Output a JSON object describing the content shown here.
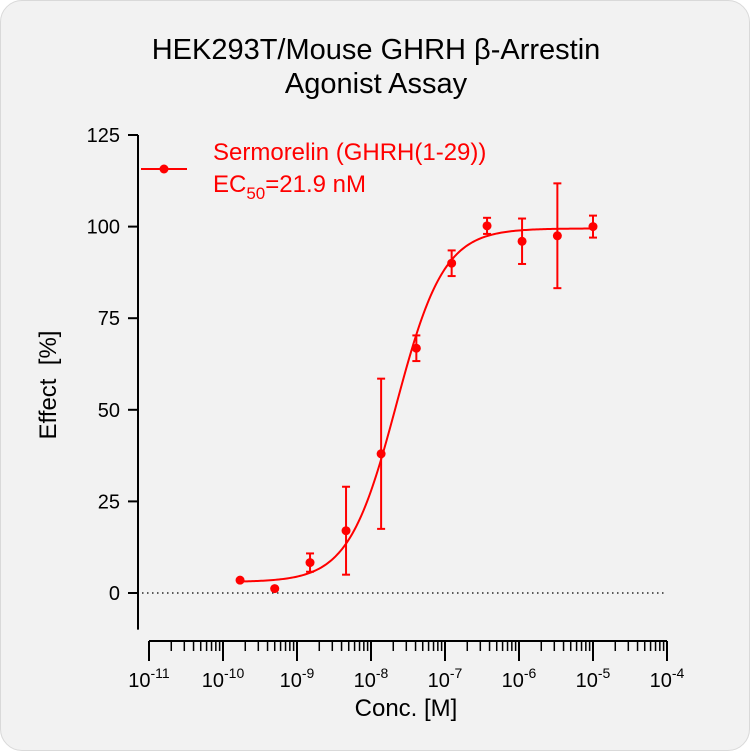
{
  "chart_data": {
    "type": "scatter",
    "title": "HEK293T/Mouse GHRH β-Arrestin",
    "subtitle": "Agonist Assay",
    "xlabel": "Conc. [M]",
    "ylabel": "Effect  [%]",
    "x_scale": "log10",
    "xlim": [
      1e-11,
      0.0001
    ],
    "ylim": [
      -10,
      125
    ],
    "y_ticks": [
      0,
      25,
      50,
      75,
      100,
      125
    ],
    "x_tick_labels": [
      {
        "base": "10",
        "exp": "-11"
      },
      {
        "base": "10",
        "exp": "-10"
      },
      {
        "base": "10",
        "exp": "-9"
      },
      {
        "base": "10",
        "exp": "-8"
      },
      {
        "base": "10",
        "exp": "-7"
      },
      {
        "base": "10",
        "exp": "-6"
      },
      {
        "base": "10",
        "exp": "-5"
      },
      {
        "base": "10",
        "exp": "-4"
      }
    ],
    "reference_line_y": 0,
    "legend_position": "top-left",
    "series": [
      {
        "name": "Sermorelin (GHRH(1-29))",
        "color": "#ff0000",
        "x": [
          1.7e-10,
          5e-10,
          1.5e-09,
          4.6e-09,
          1.37e-08,
          4.1e-08,
          1.23e-07,
          3.7e-07,
          1.1e-06,
          3.3e-06,
          1e-05
        ],
        "y": [
          3.5,
          1.2,
          8.3,
          17.0,
          38.0,
          66.8,
          90.0,
          100.2,
          96.0,
          97.5,
          100.0
        ],
        "err": [
          0,
          0,
          2.5,
          12.0,
          20.5,
          3.5,
          3.5,
          2.2,
          6.2,
          14.3,
          3.0
        ]
      }
    ],
    "fit": {
      "bottom": 3.0,
      "top": 99.5,
      "ec50": 2.19e-08,
      "hill": 1.35
    },
    "annotation": {
      "ec_prefix": "EC",
      "ec_sub": "50",
      "ec_value": "=21.9 nM"
    }
  }
}
